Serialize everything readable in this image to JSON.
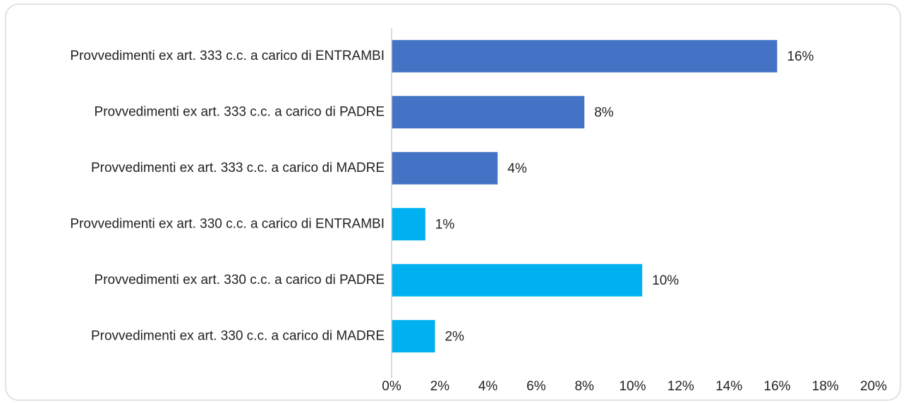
{
  "chart_data": {
    "type": "bar",
    "orientation": "horizontal",
    "categories": [
      "Provvedimenti ex art. 333 c.c. a carico di ENTRAMBI",
      "Provvedimenti ex art. 333 c.c. a carico di PADRE",
      "Provvedimenti ex art. 333 c.c. a carico di MADRE",
      "Provvedimenti ex art. 330 c.c. a carico di ENTRAMBI",
      "Provvedimenti ex art. 330 c.c. a carico di PADRE",
      "Provvedimenti ex art. 330 c.c. a carico di MADRE"
    ],
    "values": [
      16,
      8,
      4.4,
      1.4,
      10.4,
      1.8
    ],
    "value_labels": [
      "16%",
      "8%",
      "4%",
      "1%",
      "10%",
      "2%"
    ],
    "colors": [
      "#4472c4",
      "#4472c4",
      "#4472c4",
      "#00b0f0",
      "#00b0f0",
      "#00b0f0"
    ],
    "xlim": [
      0,
      20
    ],
    "xticks": [
      {
        "value": 0,
        "label": "0%"
      },
      {
        "value": 2,
        "label": "2%"
      },
      {
        "value": 4,
        "label": "4%"
      },
      {
        "value": 6,
        "label": "6%"
      },
      {
        "value": 8,
        "label": "8%"
      },
      {
        "value": 10,
        "label": "10%"
      },
      {
        "value": 12,
        "label": "12%"
      },
      {
        "value": 14,
        "label": "14%"
      },
      {
        "value": 16,
        "label": "16%"
      },
      {
        "value": 18,
        "label": "18%"
      },
      {
        "value": 20,
        "label": "20%"
      }
    ],
    "grid": false
  }
}
